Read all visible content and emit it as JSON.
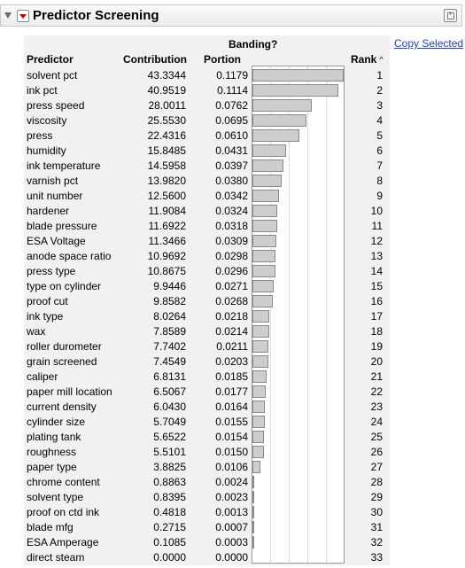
{
  "header": {
    "title": "Predictor Screening"
  },
  "table": {
    "group_label": "Banding?",
    "columns": {
      "predictor": "Predictor",
      "contribution": "Contribution",
      "portion": "Portion",
      "rank": "Rank"
    },
    "sort": "rank-ascending",
    "copy_selected": "Copy Selected",
    "max_portion": 0.1179,
    "rows": [
      {
        "predictor": "solvent pct",
        "contribution": "43.3344",
        "portion": "0.1179",
        "rank": "1"
      },
      {
        "predictor": "ink pct",
        "contribution": "40.9519",
        "portion": "0.1114",
        "rank": "2"
      },
      {
        "predictor": "press speed",
        "contribution": "28.0011",
        "portion": "0.0762",
        "rank": "3"
      },
      {
        "predictor": "viscosity",
        "contribution": "25.5530",
        "portion": "0.0695",
        "rank": "4"
      },
      {
        "predictor": "press",
        "contribution": "22.4316",
        "portion": "0.0610",
        "rank": "5"
      },
      {
        "predictor": "humidity",
        "contribution": "15.8485",
        "portion": "0.0431",
        "rank": "6"
      },
      {
        "predictor": "ink temperature",
        "contribution": "14.5958",
        "portion": "0.0397",
        "rank": "7"
      },
      {
        "predictor": "varnish pct",
        "contribution": "13.9820",
        "portion": "0.0380",
        "rank": "8"
      },
      {
        "predictor": "unit number",
        "contribution": "12.5600",
        "portion": "0.0342",
        "rank": "9"
      },
      {
        "predictor": "hardener",
        "contribution": "11.9084",
        "portion": "0.0324",
        "rank": "10"
      },
      {
        "predictor": "blade pressure",
        "contribution": "11.6922",
        "portion": "0.0318",
        "rank": "11"
      },
      {
        "predictor": "ESA Voltage",
        "contribution": "11.3466",
        "portion": "0.0309",
        "rank": "12"
      },
      {
        "predictor": "anode space ratio",
        "contribution": "10.9692",
        "portion": "0.0298",
        "rank": "13"
      },
      {
        "predictor": "press type",
        "contribution": "10.8675",
        "portion": "0.0296",
        "rank": "14"
      },
      {
        "predictor": "type on cylinder",
        "contribution": "9.9446",
        "portion": "0.0271",
        "rank": "15"
      },
      {
        "predictor": "proof cut",
        "contribution": "9.8582",
        "portion": "0.0268",
        "rank": "16"
      },
      {
        "predictor": "ink type",
        "contribution": "8.0264",
        "portion": "0.0218",
        "rank": "17"
      },
      {
        "predictor": "wax",
        "contribution": "7.8589",
        "portion": "0.0214",
        "rank": "18"
      },
      {
        "predictor": "roller durometer",
        "contribution": "7.7402",
        "portion": "0.0211",
        "rank": "19"
      },
      {
        "predictor": "grain screened",
        "contribution": "7.4549",
        "portion": "0.0203",
        "rank": "20"
      },
      {
        "predictor": "caliper",
        "contribution": "6.8131",
        "portion": "0.0185",
        "rank": "21"
      },
      {
        "predictor": "paper mill location",
        "contribution": "6.5067",
        "portion": "0.0177",
        "rank": "22"
      },
      {
        "predictor": "current density",
        "contribution": "6.0430",
        "portion": "0.0164",
        "rank": "23"
      },
      {
        "predictor": "cylinder size",
        "contribution": "5.7049",
        "portion": "0.0155",
        "rank": "24"
      },
      {
        "predictor": "plating tank",
        "contribution": "5.6522",
        "portion": "0.0154",
        "rank": "25"
      },
      {
        "predictor": "roughness",
        "contribution": "5.5101",
        "portion": "0.0150",
        "rank": "26"
      },
      {
        "predictor": "paper type",
        "contribution": "3.8825",
        "portion": "0.0106",
        "rank": "27"
      },
      {
        "predictor": "chrome content",
        "contribution": "0.8863",
        "portion": "0.0024",
        "rank": "28"
      },
      {
        "predictor": "solvent type",
        "contribution": "0.8395",
        "portion": "0.0023",
        "rank": "29"
      },
      {
        "predictor": "proof on ctd ink",
        "contribution": "0.4818",
        "portion": "0.0013",
        "rank": "30"
      },
      {
        "predictor": "blade mfg",
        "contribution": "0.2715",
        "portion": "0.0007",
        "rank": "31"
      },
      {
        "predictor": "ESA Amperage",
        "contribution": "0.1085",
        "portion": "0.0003",
        "rank": "32"
      },
      {
        "predictor": "direct steam",
        "contribution": "0.0000",
        "portion": "0.0000",
        "rank": "33"
      }
    ]
  },
  "icons": {
    "disclosure": "disclosure-triangle-icon",
    "menu": "red-triangle-menu-icon",
    "panel": "panel-options-icon",
    "sort": "sort-ascending-icon"
  },
  "colors": {
    "bar_fill": "#cdcdcd",
    "link": "#1a44c8",
    "menu_accent": "#d20000"
  }
}
